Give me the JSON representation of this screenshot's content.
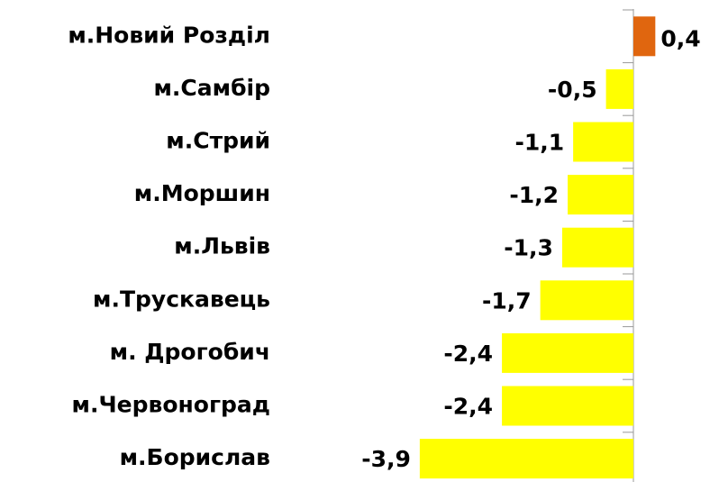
{
  "chart_data": {
    "type": "barh",
    "categories": [
      "м.Новий Розділ",
      "м.Самбір",
      "м.Стрий",
      "м.Моршин",
      "м.Львів",
      "м.Трускавець",
      "м. Дрогобич",
      "м.Червоноград",
      "м.Борислав"
    ],
    "values": [
      0.4,
      -0.5,
      -1.1,
      -1.2,
      -1.3,
      -1.7,
      -2.4,
      -2.4,
      -3.9
    ],
    "value_labels": [
      "0,4",
      "-0,5",
      "-1,1",
      "-1,2",
      "-1,3",
      "-1,7",
      "-2,4",
      "-2,4",
      "-3,9"
    ],
    "colors": [
      "#e0660f",
      "#ffff00",
      "#ffff00",
      "#ffff00",
      "#ffff00",
      "#ffff00",
      "#ffff00",
      "#ffff00",
      "#ffff00"
    ]
  }
}
